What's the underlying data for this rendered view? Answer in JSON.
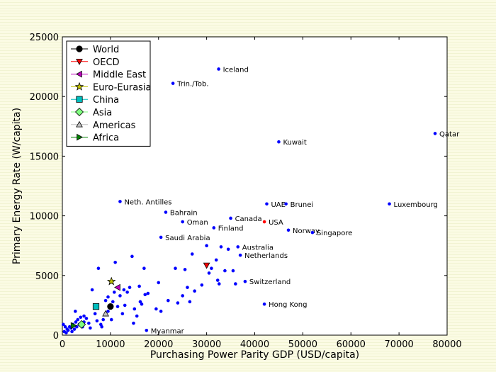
{
  "chart_data": {
    "type": "scatter",
    "title": "",
    "xlabel": "Purchasing Power Parity GDP (USD/capita)",
    "ylabel": "Primary Energy Rate (W/capita)",
    "xlim": [
      0,
      80000
    ],
    "ylim": [
      0,
      25000
    ],
    "xticks": [
      "0",
      "10000",
      "20000",
      "30000",
      "40000",
      "50000",
      "60000",
      "70000",
      "80000"
    ],
    "yticks": [
      "0",
      "5000",
      "10000",
      "15000",
      "20000",
      "25000"
    ],
    "grid": false,
    "legend_position": "top-left",
    "legend": [
      {
        "name": "World",
        "marker": "circle",
        "color": "#000000"
      },
      {
        "name": "OECD",
        "marker": "triangle-down",
        "color": "#ff0000"
      },
      {
        "name": "Middle East",
        "marker": "triangle-left",
        "color": "#bf00bf"
      },
      {
        "name": "Euro-Eurasia",
        "marker": "star",
        "color": "#bfbf00"
      },
      {
        "name": "China",
        "marker": "square",
        "color": "#00bfbf"
      },
      {
        "name": "Asia",
        "marker": "diamond",
        "color": "#7fff7f"
      },
      {
        "name": "Americas",
        "marker": "triangle-up",
        "color": "#bfbfbf"
      },
      {
        "name": "Africa",
        "marker": "triangle-right",
        "color": "#007f00"
      }
    ],
    "regions": [
      {
        "name": "World",
        "x": 10000,
        "y": 2400
      },
      {
        "name": "OECD",
        "x": 30000,
        "y": 5850
      },
      {
        "name": "Middle East",
        "x": 11500,
        "y": 4000
      },
      {
        "name": "Euro-Eurasia",
        "x": 10200,
        "y": 4500
      },
      {
        "name": "China",
        "x": 7000,
        "y": 2400
      },
      {
        "name": "Asia",
        "x": 4000,
        "y": 900
      },
      {
        "name": "Americas",
        "x": 9000,
        "y": 1800
      },
      {
        "name": "Africa",
        "x": 2300,
        "y": 800
      }
    ],
    "labeled_points": [
      {
        "label": "Iceland",
        "x": 32500,
        "y": 22300
      },
      {
        "label": "Trin./Tob.",
        "x": 23000,
        "y": 21100
      },
      {
        "label": "Qatar",
        "x": 77500,
        "y": 16900
      },
      {
        "label": "Kuwait",
        "x": 45000,
        "y": 16200
      },
      {
        "label": "Neth. Antilles",
        "x": 12000,
        "y": 11200
      },
      {
        "label": "UAE",
        "x": 42500,
        "y": 11000
      },
      {
        "label": "Brunei",
        "x": 46500,
        "y": 11000
      },
      {
        "label": "Luxembourg",
        "x": 68000,
        "y": 11000
      },
      {
        "label": "Bahrain",
        "x": 21500,
        "y": 10300
      },
      {
        "label": "Canada",
        "x": 35000,
        "y": 9800
      },
      {
        "label": "USA",
        "x": 42000,
        "y": 9500,
        "color": "#ff0000"
      },
      {
        "label": "Oman",
        "x": 25000,
        "y": 9500
      },
      {
        "label": "Finland",
        "x": 31500,
        "y": 9000
      },
      {
        "label": "Norway",
        "x": 47000,
        "y": 8800
      },
      {
        "label": "Singapore",
        "x": 52000,
        "y": 8600
      },
      {
        "label": "Saudi Arabia",
        "x": 20500,
        "y": 8200
      },
      {
        "label": "Australia",
        "x": 36500,
        "y": 7400
      },
      {
        "label": "Netherlands",
        "x": 37000,
        "y": 6700
      },
      {
        "label": "Switzerland",
        "x": 38000,
        "y": 4500
      },
      {
        "label": "Hong Kong",
        "x": 42000,
        "y": 2600
      },
      {
        "label": "Myanmar",
        "x": 17500,
        "y": 400
      }
    ],
    "other_points": [
      [
        200,
        900
      ],
      [
        400,
        300
      ],
      [
        600,
        700
      ],
      [
        800,
        200
      ],
      [
        1000,
        500
      ],
      [
        1200,
        400
      ],
      [
        1500,
        700
      ],
      [
        1800,
        600
      ],
      [
        2000,
        300
      ],
      [
        2200,
        900
      ],
      [
        2500,
        500
      ],
      [
        2800,
        1100
      ],
      [
        3000,
        700
      ],
      [
        3200,
        1300
      ],
      [
        3500,
        900
      ],
      [
        3800,
        1500
      ],
      [
        4200,
        700
      ],
      [
        4500,
        1100
      ],
      [
        5000,
        1400
      ],
      [
        5500,
        1000
      ],
      [
        5800,
        600
      ],
      [
        6200,
        3800
      ],
      [
        6800,
        1800
      ],
      [
        7200,
        1200
      ],
      [
        7500,
        5600
      ],
      [
        8000,
        900
      ],
      [
        8500,
        1300
      ],
      [
        9000,
        2900
      ],
      [
        9500,
        2000
      ],
      [
        10200,
        1300
      ],
      [
        10500,
        2800
      ],
      [
        10800,
        3600
      ],
      [
        11000,
        6100
      ],
      [
        11500,
        2400
      ],
      [
        12000,
        3300
      ],
      [
        12500,
        1800
      ],
      [
        13000,
        2500
      ],
      [
        13500,
        3600
      ],
      [
        14000,
        4000
      ],
      [
        14500,
        6600
      ],
      [
        15000,
        2200
      ],
      [
        15500,
        1600
      ],
      [
        16000,
        4100
      ],
      [
        16500,
        2600
      ],
      [
        17000,
        5600
      ],
      [
        17200,
        3400
      ],
      [
        17800,
        3500
      ],
      [
        20000,
        4400
      ],
      [
        20500,
        2000
      ],
      [
        22000,
        2900
      ],
      [
        23500,
        5600
      ],
      [
        24000,
        2700
      ],
      [
        25000,
        3300
      ],
      [
        25500,
        5500
      ],
      [
        26000,
        4000
      ],
      [
        26500,
        2800
      ],
      [
        27000,
        6800
      ],
      [
        27500,
        3700
      ],
      [
        29000,
        4200
      ],
      [
        30000,
        7500
      ],
      [
        30500,
        5200
      ],
      [
        31000,
        5600
      ],
      [
        32000,
        6300
      ],
      [
        32300,
        4600
      ],
      [
        32600,
        4300
      ],
      [
        33000,
        7400
      ],
      [
        33800,
        5400
      ],
      [
        34500,
        7200
      ],
      [
        35500,
        5400
      ],
      [
        36000,
        4300
      ],
      [
        2700,
        2000
      ],
      [
        4500,
        1600
      ],
      [
        9500,
        3200
      ],
      [
        12800,
        3800
      ],
      [
        16200,
        2800
      ],
      [
        19500,
        2200
      ],
      [
        14800,
        1000
      ],
      [
        8200,
        700
      ]
    ]
  }
}
